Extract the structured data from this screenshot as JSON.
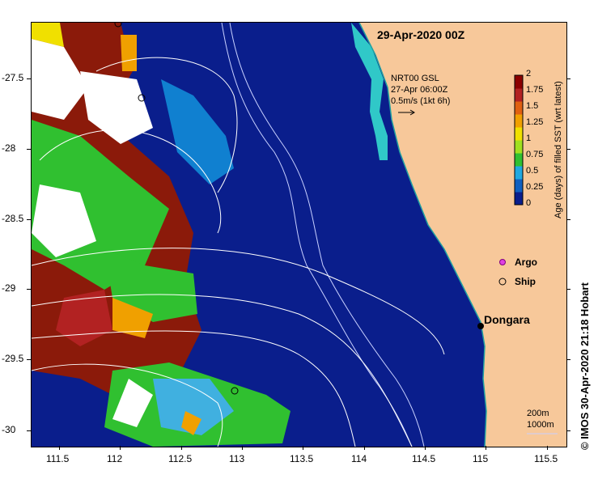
{
  "title": "29-Apr-2020 00Z",
  "velocity_legend": {
    "source": "NRT00 GSL",
    "time": "27-Apr 06:00Z",
    "scale": "0.5m/s (1kt 6h)"
  },
  "colorbar": {
    "label": "Age (days) of filled SST (wrt latest)",
    "ticks": [
      "2",
      "1.75",
      "1.5",
      "1.25",
      "1",
      "0.75",
      "0.5",
      "0.25",
      "0"
    ],
    "colors": [
      "#8b0000",
      "#b22222",
      "#e06010",
      "#f0a000",
      "#f0e000",
      "#a0e020",
      "#30c030",
      "#20a8e0",
      "#1060c0",
      "#0a1e8c"
    ]
  },
  "legend": {
    "argo": "Argo",
    "ship": "Ship"
  },
  "place": "Dongara",
  "isobaths": {
    "depth1": "200m",
    "depth2": "1000m"
  },
  "x_ticks": [
    "111.5",
    "112",
    "112.5",
    "113",
    "113.5",
    "114",
    "114.5",
    "115",
    "115.5"
  ],
  "y_ticks": [
    "-27.5",
    "-28",
    "-28.5",
    "-29",
    "-29.5",
    "-30"
  ],
  "credit": "© IMOS 30-Apr-2020 21:18 Hobart",
  "colors": {
    "ocean": "#0a1e8c",
    "land": "#f7c89a",
    "coast_band": "#30c8c8"
  }
}
